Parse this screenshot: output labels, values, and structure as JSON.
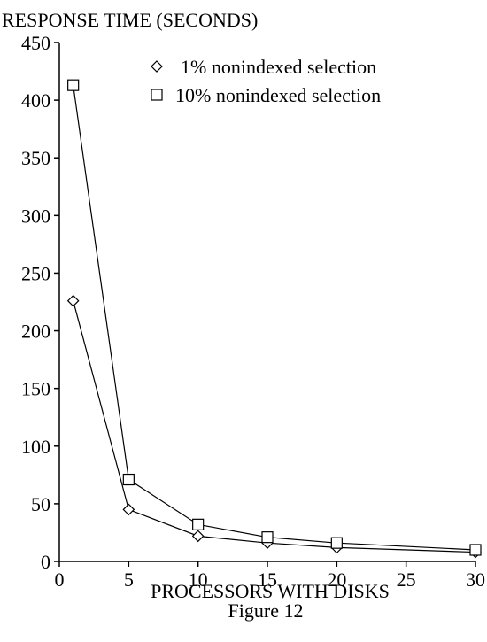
{
  "chart_data": {
    "type": "line",
    "title": "",
    "ylabel": "RESPONSE TIME (SECONDS)",
    "xlabel": "PROCESSORS WITH DISKS",
    "caption": "Figure 12",
    "xlim": [
      0,
      30
    ],
    "ylim": [
      0,
      450
    ],
    "xticks": [
      0,
      5,
      10,
      15,
      20,
      25,
      30
    ],
    "yticks": [
      0,
      50,
      100,
      150,
      200,
      250,
      300,
      350,
      400,
      450
    ],
    "grid": false,
    "legend_position": "top-right",
    "x": [
      1,
      5,
      10,
      15,
      20,
      30
    ],
    "series": [
      {
        "name": "1% nonindexed selection",
        "marker": "diamond",
        "values": [
          226,
          45,
          22,
          16,
          12,
          8
        ]
      },
      {
        "name": "10% nonindexed selection",
        "marker": "square",
        "values": [
          413,
          71,
          32,
          21,
          16,
          10
        ]
      }
    ],
    "colors": {
      "line": "#000000",
      "marker_fill": "#ffffff"
    }
  }
}
